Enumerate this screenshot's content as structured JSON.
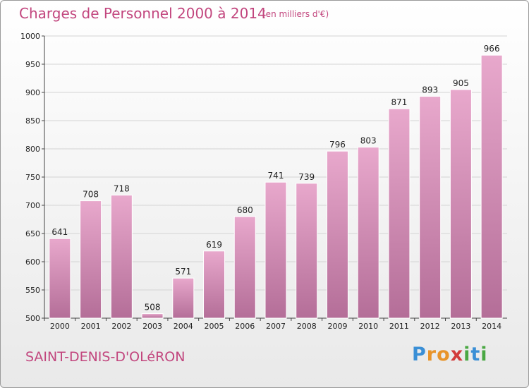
{
  "chart_data": {
    "type": "bar",
    "title": "Charges de Personnel 2000 à 2014",
    "unit_note": "(en milliers d'€)",
    "categories": [
      "2000",
      "2001",
      "2002",
      "2003",
      "2004",
      "2005",
      "2006",
      "2007",
      "2008",
      "2009",
      "2010",
      "2011",
      "2012",
      "2013",
      "2014"
    ],
    "values": [
      641,
      708,
      718,
      508,
      571,
      619,
      680,
      741,
      739,
      796,
      803,
      871,
      893,
      905,
      966
    ],
    "ylim": [
      500,
      1000
    ],
    "yticks": [
      500,
      550,
      600,
      650,
      700,
      750,
      800,
      850,
      900,
      950,
      1000
    ],
    "grid": true,
    "bar_color_top": "#e8a8cc",
    "bar_color_bottom": "#b46e98"
  },
  "footer": {
    "commune": "SAINT-DENIS-D'OLéRON",
    "logo_letters": [
      "P",
      "r",
      "o",
      "x",
      "i",
      "t",
      "i"
    ],
    "logo_colors": [
      "#3a8fd6",
      "#e8942a",
      "#e8942a",
      "#d23b3b",
      "#4aa843",
      "#3a8fd6",
      "#4aa843"
    ]
  }
}
